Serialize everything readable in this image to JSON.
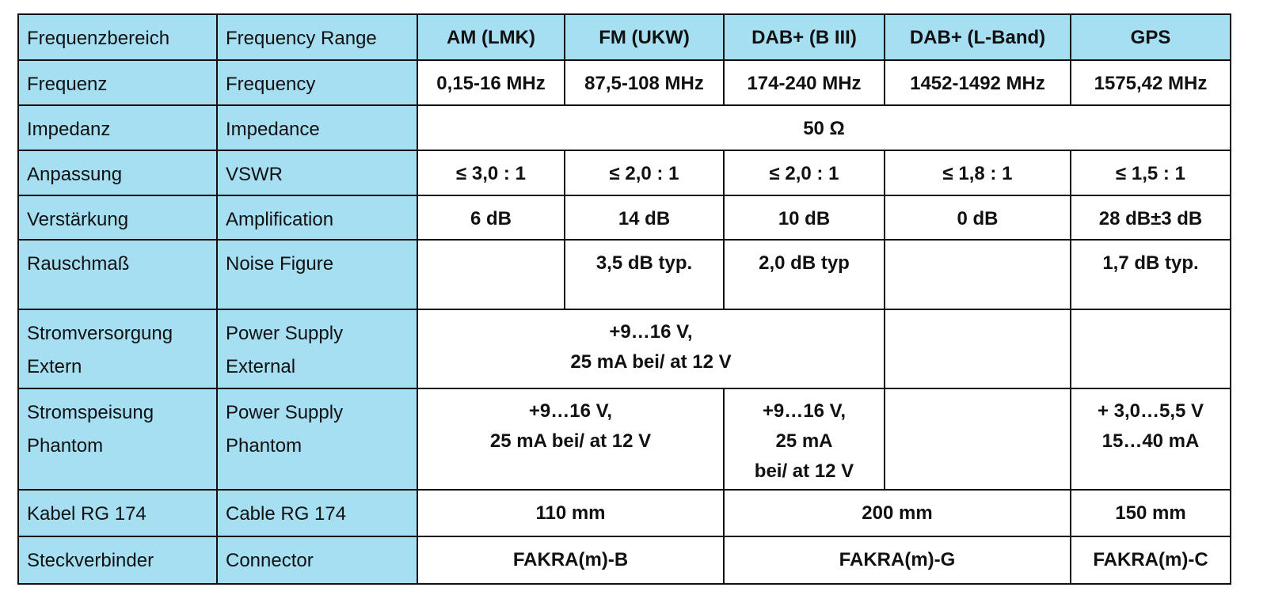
{
  "table": {
    "rows": [
      [
        [
          "Frequenzbereich"
        ],
        [
          "Frequency Range"
        ],
        [
          "AM (LMK)"
        ],
        [
          "FM (UKW)"
        ],
        [
          "DAB+ (B III)"
        ],
        [
          "DAB+ (L-Band)"
        ],
        [
          "GPS"
        ]
      ],
      [
        [
          "Frequenz"
        ],
        [
          "Frequency"
        ],
        [
          "0,15-16 MHz"
        ],
        [
          "87,5-108 MHz"
        ],
        [
          "174-240 MHz"
        ],
        [
          "1452-1492 MHz"
        ],
        [
          "1575,42 MHz"
        ]
      ],
      [
        [
          "Impedanz"
        ],
        [
          "Impedance"
        ],
        [
          "50 Ω"
        ]
      ],
      [
        [
          "Anpassung"
        ],
        [
          "VSWR"
        ],
        [
          "≤ 3,0 : 1"
        ],
        [
          "≤ 2,0 : 1"
        ],
        [
          "≤ 2,0 : 1"
        ],
        [
          "≤ 1,8 : 1"
        ],
        [
          "≤ 1,5 : 1"
        ]
      ],
      [
        [
          "Verstärkung"
        ],
        [
          "Amplification"
        ],
        [
          "6 dB"
        ],
        [
          "14 dB"
        ],
        [
          "10 dB"
        ],
        [
          "0 dB"
        ],
        [
          "28 dB±3 dB"
        ]
      ],
      [
        [
          "Rauschmaß"
        ],
        [
          "Noise Figure"
        ],
        [
          "3,5 dB typ."
        ],
        [
          "2,0 dB typ"
        ],
        [
          "1,7 dB typ."
        ]
      ],
      [
        [
          "Stromversorgung",
          "Extern"
        ],
        [
          "Power Supply",
          "External"
        ],
        [
          "+9…16 V,",
          "25 mA bei/ at 12 V"
        ]
      ],
      [
        [
          "Stromspeisung",
          "Phantom"
        ],
        [
          "Power Supply",
          "Phantom"
        ],
        [
          "+9…16 V,",
          "25 mA bei/ at 12 V"
        ],
        [
          "+9…16 V,",
          "25 mA",
          "bei/ at 12 V"
        ],
        [
          "+ 3,0…5,5 V",
          "15…40 mA"
        ]
      ],
      [
        [
          "Kabel RG 174"
        ],
        [
          "Cable RG 174"
        ],
        [
          "110 mm"
        ],
        [
          "200 mm"
        ],
        [
          "150 mm"
        ]
      ],
      [
        [
          "Steckverbinder"
        ],
        [
          "Connector"
        ],
        [
          "FAKRA(m)-B"
        ],
        [
          "FAKRA(m)-G"
        ],
        [
          "FAKRA(m)-C"
        ]
      ]
    ]
  }
}
